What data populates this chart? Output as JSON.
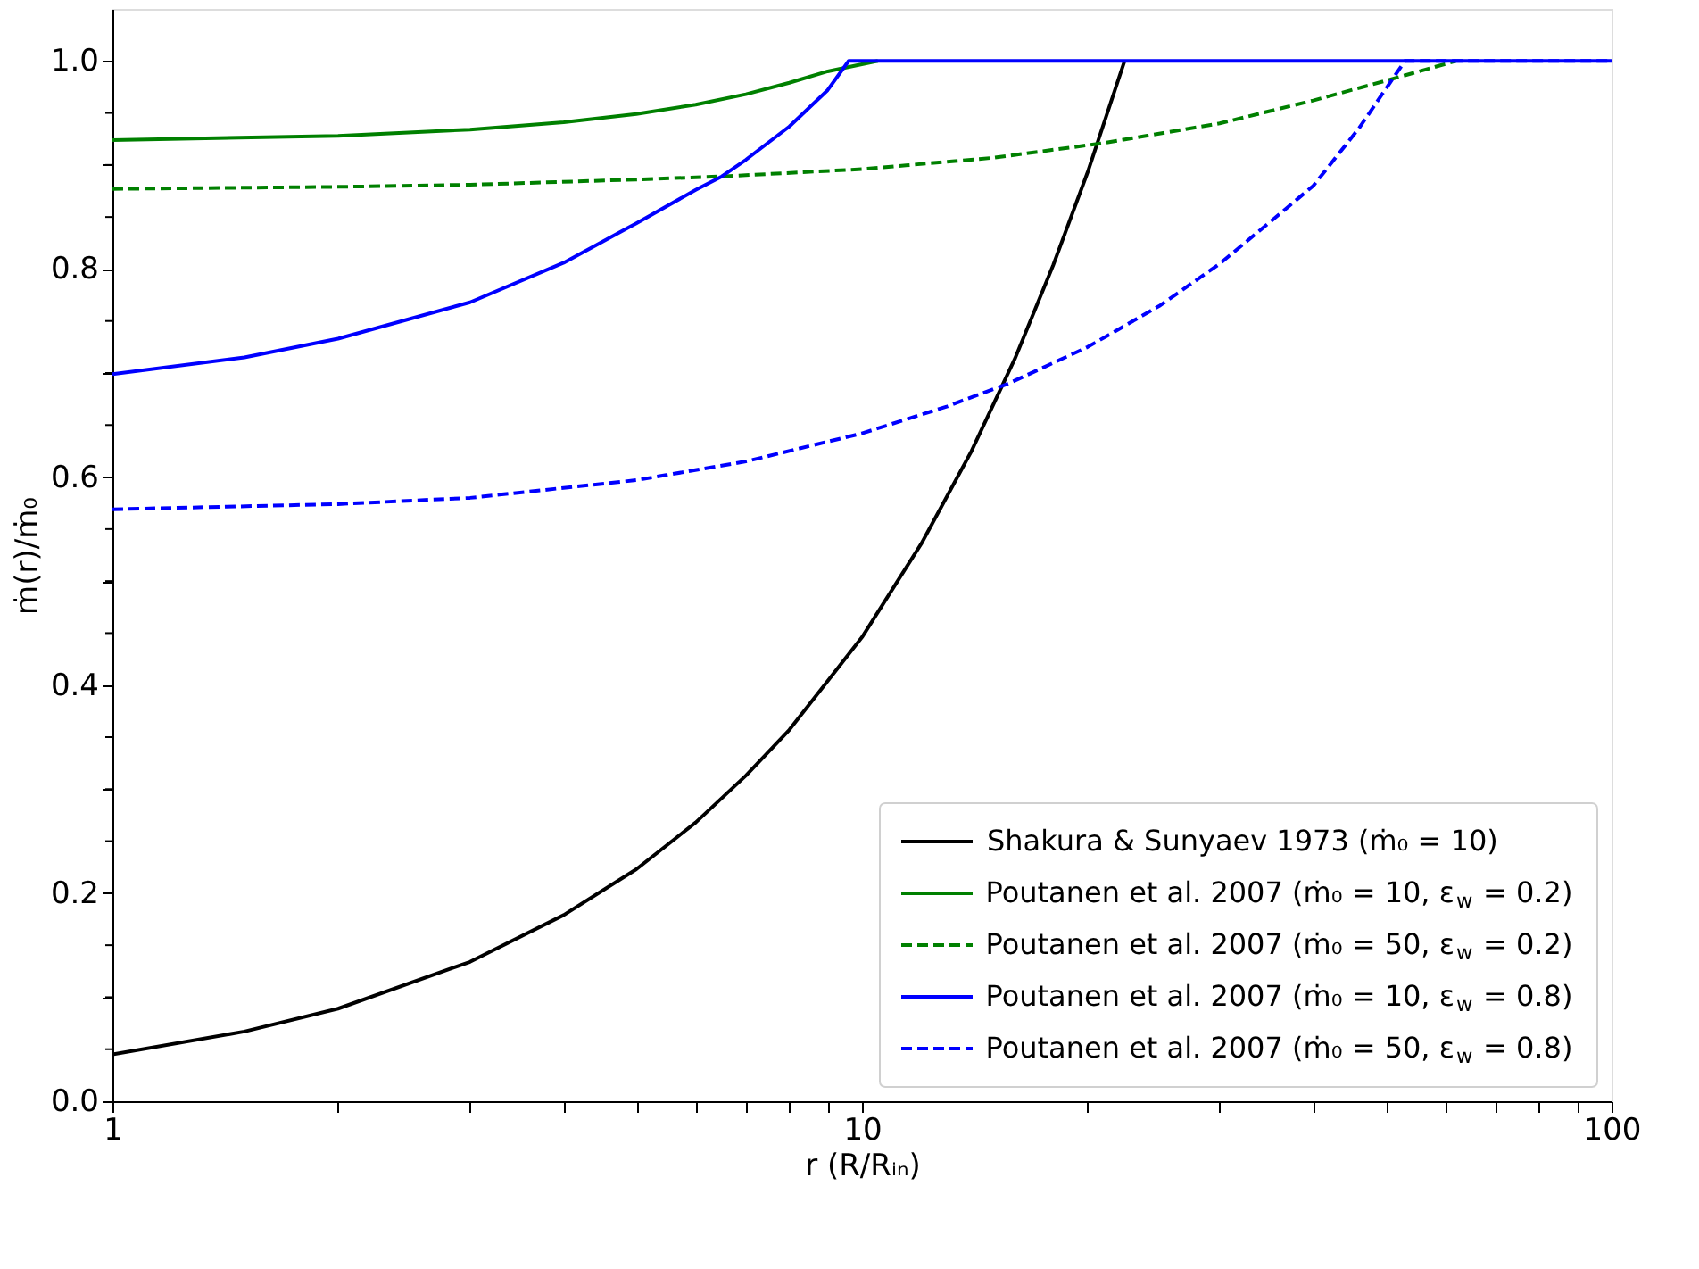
{
  "chart_data": {
    "type": "line",
    "xlabel": "r (R/Rᵢₙ)",
    "ylabel": "ṁ(r)/ṁ₀",
    "log": "x",
    "xlim": [
      1,
      100
    ],
    "ylim": [
      0,
      1.05
    ],
    "xticks": [
      1,
      {
        "value": 2,
        "label": null
      },
      {
        "value": 3,
        "label": null
      },
      {
        "value": 4,
        "label": null
      },
      {
        "value": 5,
        "label": null
      },
      {
        "value": 6,
        "label": null
      },
      {
        "value": 7,
        "label": null
      },
      {
        "value": 8,
        "label": null
      },
      {
        "value": 9,
        "label": null
      },
      10,
      {
        "value": 20,
        "label": null
      },
      {
        "value": 30,
        "label": null
      },
      {
        "value": 40,
        "label": null
      },
      {
        "value": 50,
        "label": null
      },
      {
        "value": 60,
        "label": null
      },
      {
        "value": 70,
        "label": null
      },
      {
        "value": 80,
        "label": null
      },
      {
        "value": 90,
        "label": null
      },
      100
    ],
    "yticks": [
      {
        "value": 0,
        "label": "0.0"
      },
      {
        "value": 0.05,
        "label": null
      },
      {
        "value": 0.1,
        "label": null
      },
      {
        "value": 0.15,
        "label": null
      },
      {
        "value": 0.2,
        "label": "0.2"
      },
      {
        "value": 0.25,
        "label": null
      },
      {
        "value": 0.3,
        "label": null
      },
      {
        "value": 0.35,
        "label": null
      },
      {
        "value": 0.4,
        "label": "0.4"
      },
      {
        "value": 0.45,
        "label": null
      },
      {
        "value": 0.5,
        "label": null
      },
      {
        "value": 0.55,
        "label": null
      },
      {
        "value": 0.6,
        "label": "0.6"
      },
      {
        "value": 0.65,
        "label": null
      },
      {
        "value": 0.7,
        "label": null
      },
      {
        "value": 0.75,
        "label": null
      },
      {
        "value": 0.8,
        "label": "0.8"
      },
      {
        "value": 0.85,
        "label": null
      },
      {
        "value": 0.9,
        "label": null
      },
      {
        "value": 0.95,
        "label": null
      },
      {
        "value": 1.0,
        "label": "1.0"
      }
    ],
    "grid": false,
    "legend": "bottom right",
    "marker": "none",
    "series": [
      {
        "name": "Shakura & Sunyaev 1973 (ṁ₀ = 10)",
        "color": "#000000",
        "line_style": "solid",
        "x": [
          1,
          1.5,
          2,
          3,
          4,
          5,
          6,
          7,
          8,
          10,
          12,
          14,
          16,
          18,
          20,
          22.4
        ],
        "values": [
          0.045,
          0.067,
          0.089,
          0.134,
          0.179,
          0.223,
          0.268,
          0.313,
          0.357,
          0.446,
          0.536,
          0.625,
          0.714,
          0.804,
          0.893,
          1.0
        ]
      },
      {
        "name": "Poutanen et al. 2007 (ṁ₀ = 10, ε$_{w}$ = 0.2)",
        "color": "#008000",
        "line_style": "solid",
        "x": [
          1,
          2,
          3,
          4,
          5,
          6,
          7,
          8,
          9,
          10.5
        ],
        "values": [
          0.924,
          0.928,
          0.934,
          0.941,
          0.949,
          0.958,
          0.968,
          0.979,
          0.99,
          1.0
        ]
      },
      {
        "name": "Poutanen et al. 2007 (ṁ₀ = 50, ε$_{w}$ = 0.2)",
        "color": "#008000",
        "line_style": "dashed",
        "x": [
          1,
          2,
          3,
          5,
          6.5,
          10,
          15,
          21,
          30,
          40,
          50,
          62
        ],
        "values": [
          0.877,
          0.879,
          0.881,
          0.886,
          0.889,
          0.896,
          0.907,
          0.921,
          0.94,
          0.962,
          0.981,
          1.0
        ]
      },
      {
        "name": "Poutanen et al. 2007 (ṁ₀ = 10, ε$_{w}$ = 0.8)",
        "color": "#0000ff",
        "line_style": "solid",
        "x": [
          1,
          1.5,
          2,
          3,
          4,
          5,
          6,
          6.5,
          7,
          8,
          9,
          9.6,
          20,
          50,
          100
        ],
        "values": [
          0.699,
          0.715,
          0.733,
          0.768,
          0.806,
          0.844,
          0.876,
          0.889,
          0.905,
          0.937,
          0.972,
          1.0,
          1.0,
          1.0,
          1.0
        ]
      },
      {
        "name": "Poutanen et al. 2007 (ṁ₀ = 50, ε$_{w}$ = 0.8)",
        "color": "#0000ff",
        "line_style": "dashed",
        "x": [
          1,
          2,
          3,
          5,
          7,
          10,
          13,
          15.7,
          20,
          25,
          30,
          35,
          40,
          46,
          53,
          100
        ],
        "values": [
          0.569,
          0.574,
          0.58,
          0.597,
          0.615,
          0.642,
          0.668,
          0.69,
          0.725,
          0.765,
          0.805,
          0.845,
          0.88,
          0.935,
          1.0,
          1.0
        ]
      }
    ]
  }
}
